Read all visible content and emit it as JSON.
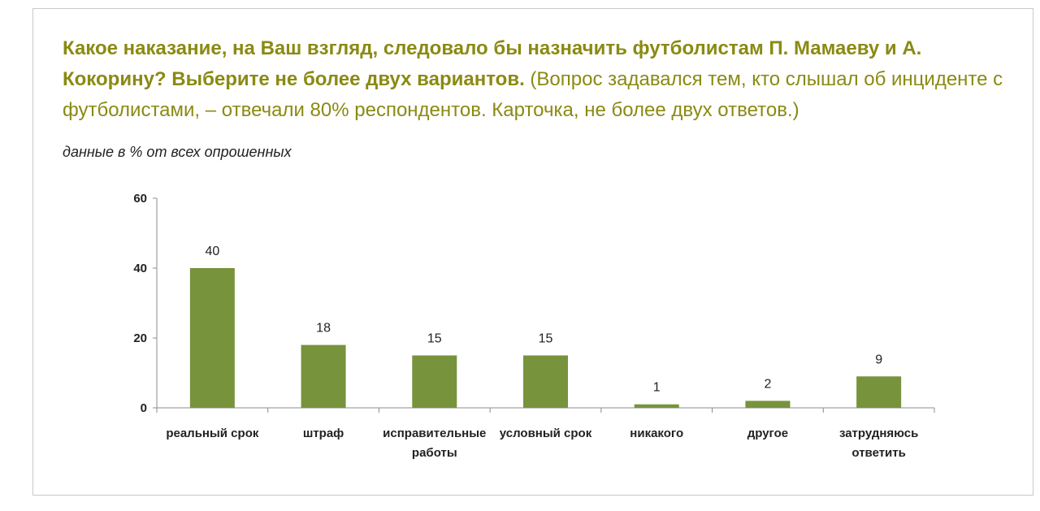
{
  "title": {
    "bold": "Какое наказание, на Ваш взгляд, следовало бы назначить футболистам П. Мамаеву и А. Кокорину? Выберите не более двух вариантов.",
    "normal": " (Вопрос задавался тем, кто слышал об инциденте с футболистами, – отвечали 80% респондентов. Карточка, не более двух ответов.)"
  },
  "subtitle": "данные в % от всех опрошенных",
  "colors": {
    "title": "#8a8a13",
    "bar": "#77933c",
    "axis": "#8c8c8c"
  },
  "chart_data": {
    "type": "bar",
    "categories": [
      [
        "реальный срок"
      ],
      [
        "штраф"
      ],
      [
        "исправительные",
        "работы"
      ],
      [
        "условный срок"
      ],
      [
        "никакого"
      ],
      [
        "другое"
      ],
      [
        "затрудняюсь",
        "ответить"
      ]
    ],
    "values": [
      40,
      18,
      15,
      15,
      1,
      2,
      9
    ],
    "ylim": [
      0,
      60
    ],
    "yticks": [
      0,
      20,
      40,
      60
    ],
    "grid": false,
    "legend": "none"
  }
}
